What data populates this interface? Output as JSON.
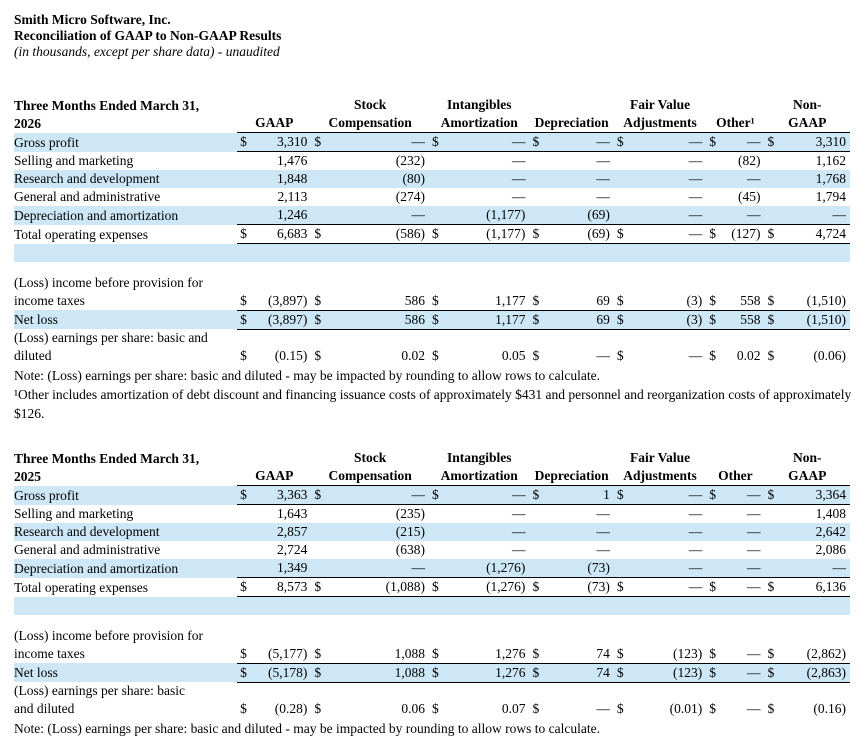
{
  "header": {
    "company": "Smith Micro Software, Inc.",
    "title": "Reconciliation of GAAP to Non-GAAP Results",
    "subtitle": "(in thousands, except per share data) - unaudited"
  },
  "colors": {
    "row_highlight": "#cde7f6",
    "text": "#000000",
    "rule": "#000000"
  },
  "tables": [
    {
      "period_label": "Three Months Ended March 31,\n2026",
      "columns": [
        "GAAP",
        "Stock\nCompensation",
        "Intangibles\nAmortization",
        "Depreciation",
        "Fair Value\nAdjustments",
        "Other¹",
        "Non-\nGAAP"
      ],
      "rows": [
        {
          "label": "Gross profit",
          "dollars": true,
          "shaded": true,
          "underline": true,
          "values": [
            "3,310",
            "—",
            "—",
            "—",
            "—",
            "—",
            "3,310"
          ]
        },
        {
          "label": "Selling and marketing",
          "dollars": false,
          "shaded": false,
          "underline": false,
          "values": [
            "1,476",
            "(232)",
            "—",
            "—",
            "—",
            "(82)",
            "1,162"
          ]
        },
        {
          "label": "Research and development",
          "dollars": false,
          "shaded": true,
          "underline": false,
          "values": [
            "1,848",
            "(80)",
            "—",
            "—",
            "—",
            "—",
            "1,768"
          ]
        },
        {
          "label": "General and administrative",
          "dollars": false,
          "shaded": false,
          "underline": false,
          "values": [
            "2,113",
            "(274)",
            "—",
            "—",
            "—",
            "(45)",
            "1,794"
          ]
        },
        {
          "label": "Depreciation and amortization",
          "dollars": false,
          "shaded": true,
          "underline": true,
          "values": [
            "1,246",
            "—",
            "(1,177)",
            "(69)",
            "—",
            "—",
            "—"
          ]
        },
        {
          "label": "Total operating expenses",
          "dollars": true,
          "shaded": false,
          "underline": true,
          "values": [
            "6,683",
            "(586)",
            "(1,177)",
            "(69)",
            "—",
            "(127)",
            "4,724"
          ]
        },
        {
          "blank": true,
          "shaded": true,
          "height": 18
        },
        {
          "blank": true,
          "shaded": false,
          "height": 12
        },
        {
          "label": "(Loss) income before provision for\nincome taxes",
          "dollars": true,
          "shaded": false,
          "underline": true,
          "values": [
            "(3,897)",
            "586",
            "1,177",
            "69",
            "(3)",
            "558",
            "(1,510)"
          ]
        },
        {
          "label": "Net loss",
          "dollars": true,
          "shaded": true,
          "underline": true,
          "values": [
            "(3,897)",
            "586",
            "1,177",
            "69",
            "(3)",
            "558",
            "(1,510)"
          ]
        },
        {
          "label": "(Loss) earnings per share: basic and\ndiluted",
          "dollars": true,
          "shaded": false,
          "underline": false,
          "values": [
            "(0.15)",
            "0.02",
            "0.05",
            "—",
            "—",
            "0.02",
            "(0.06)"
          ]
        }
      ],
      "notes": [
        "Note: (Loss) earnings per share: basic and diluted - may be impacted by rounding to allow rows to calculate.",
        "¹Other includes amortization of debt discount and financing issuance costs of approximately $431 and personnel and reorganization costs of approximately $126."
      ]
    },
    {
      "period_label": "Three Months Ended March 31,\n2025",
      "columns": [
        "GAAP",
        "Stock\nCompensation",
        "Intangibles\nAmortization",
        "Depreciation",
        "Fair Value\nAdjustments",
        "Other",
        "Non-\nGAAP"
      ],
      "rows": [
        {
          "label": "Gross profit",
          "dollars": true,
          "shaded": true,
          "underline": true,
          "values": [
            "3,363",
            "—",
            "—",
            "1",
            "—",
            "—",
            "3,364"
          ]
        },
        {
          "label": "Selling and marketing",
          "dollars": false,
          "shaded": false,
          "underline": false,
          "values": [
            "1,643",
            "(235)",
            "—",
            "—",
            "—",
            "—",
            "1,408"
          ]
        },
        {
          "label": "Research and development",
          "dollars": false,
          "shaded": true,
          "underline": false,
          "values": [
            "2,857",
            "(215)",
            "—",
            "—",
            "—",
            "—",
            "2,642"
          ]
        },
        {
          "label": "General and administrative",
          "dollars": false,
          "shaded": false,
          "underline": false,
          "values": [
            "2,724",
            "(638)",
            "—",
            "—",
            "—",
            "—",
            "2,086"
          ]
        },
        {
          "label": "Depreciation and amortization",
          "dollars": false,
          "shaded": true,
          "underline": true,
          "values": [
            "1,349",
            "—",
            "(1,276)",
            "(73)",
            "—",
            "—",
            "—"
          ]
        },
        {
          "label": "Total operating expenses",
          "dollars": true,
          "shaded": false,
          "underline": true,
          "values": [
            "8,573",
            "(1,088)",
            "(1,276)",
            "(73)",
            "—",
            "—",
            "6,136"
          ]
        },
        {
          "blank": true,
          "shaded": true,
          "height": 18
        },
        {
          "blank": true,
          "shaded": false,
          "height": 12
        },
        {
          "label": "(Loss) income before provision for\nincome taxes",
          "dollars": true,
          "shaded": false,
          "underline": true,
          "values": [
            "(5,177)",
            "1,088",
            "1,276",
            "74",
            "(123)",
            "—",
            "(2,862)"
          ]
        },
        {
          "label": "Net loss",
          "dollars": true,
          "shaded": true,
          "underline": true,
          "values": [
            "(5,178)",
            "1,088",
            "1,276",
            "74",
            "(123)",
            "—",
            "(2,863)"
          ]
        },
        {
          "label": "(Loss) earnings per share: basic\nand diluted",
          "dollars": true,
          "shaded": false,
          "underline": false,
          "values": [
            "(0.28)",
            "0.06",
            "0.07",
            "—",
            "(0.01)",
            "—",
            "(0.16)"
          ]
        }
      ],
      "notes": [
        "Note: (Loss) earnings per share: basic and diluted - may be impacted by rounding to allow rows to calculate."
      ]
    }
  ]
}
